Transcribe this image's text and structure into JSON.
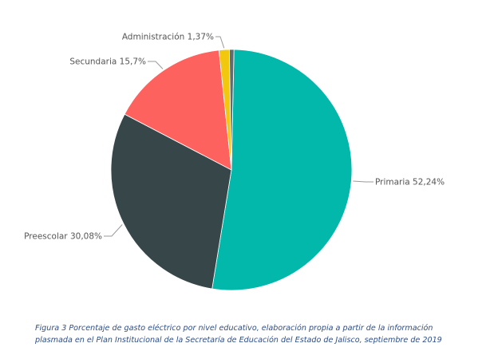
{
  "chart_data": {
    "type": "pie",
    "slices": [
      {
        "label": "Primaria 52,24%",
        "value": 52.24,
        "color": "#01b8aa"
      },
      {
        "label": "Preescolar 30,08%",
        "value": 30.08,
        "color": "#374649"
      },
      {
        "label": "Secundaria 15,7%",
        "value": 15.7,
        "color": "#fd625e"
      },
      {
        "label": "Administración 1,37%",
        "value": 1.37,
        "color": "#f2c80f"
      },
      {
        "label": "",
        "value": 0.61,
        "color": "#5f6b6d"
      }
    ],
    "legend": "none",
    "data_labels": "outside"
  },
  "caption": {
    "line1": "Figura 3 Porcentaje de gasto eléctrico por nivel educativo, elaboración propia a partir de la información",
    "line2": "plasmada en el Plan Institucional de la Secretaría de Educación del Estado de Jalisco, septiembre de 2019"
  }
}
